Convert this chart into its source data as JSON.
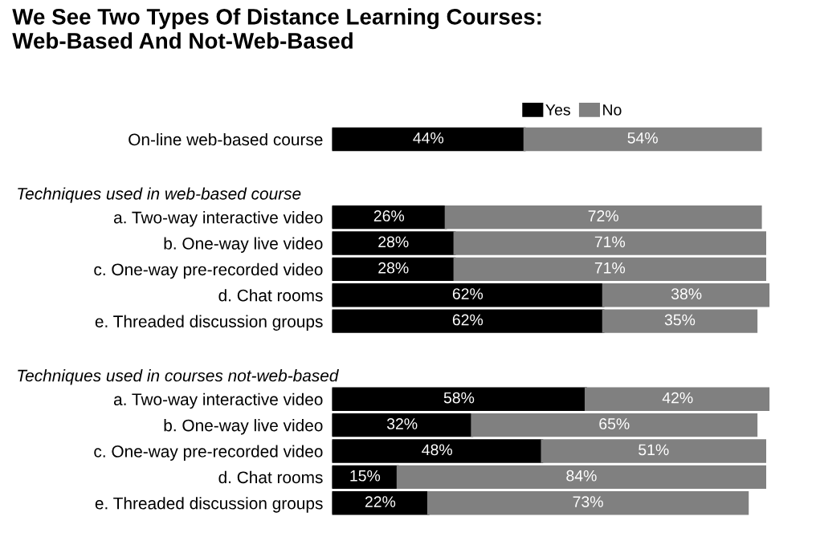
{
  "chart_data": {
    "type": "bar",
    "orientation": "horizontal",
    "stacked": true,
    "legend": "top right",
    "grid": false,
    "title": "We See Two Types Of Distance Learning Courses:\nWeb-Based And Not-Web-Based",
    "annotations": [
      "Techniques used in web-based course",
      "Techniques used in courses not-web-based"
    ],
    "categories": [
      "On-line web-based course",
      null,
      null,
      "a. Two-way interactive video",
      "b. One-way live video",
      "c. One-way pre-recorded video",
      "d. Chat rooms",
      "e. Threaded discussion groups",
      null,
      null,
      "a. Two-way interactive video",
      "b. One-way live video",
      "c. One-way pre-recorded video",
      "d. Chat rooms",
      "e. Threaded discussion groups"
    ],
    "series": [
      {
        "name": "Yes",
        "color": "#000000",
        "values": [
          44,
          null,
          null,
          26,
          28,
          28,
          62,
          62,
          null,
          null,
          58,
          32,
          48,
          15,
          22
        ],
        "value_labels": [
          "44%",
          null,
          null,
          "26%",
          "28%",
          "28%",
          "62%",
          "62%",
          null,
          null,
          "58%",
          "32%",
          "48%",
          "15%",
          "22%"
        ]
      },
      {
        "name": "No",
        "color": "#808080",
        "values": [
          54,
          null,
          null,
          72,
          71,
          71,
          38,
          35,
          null,
          null,
          42,
          65,
          51,
          84,
          73
        ],
        "value_labels": [
          "54%",
          null,
          null,
          "72%",
          "71%",
          "71%",
          "38%",
          "35%",
          null,
          null,
          "42%",
          "65%",
          "51%",
          "84%",
          "73%"
        ]
      }
    ]
  }
}
